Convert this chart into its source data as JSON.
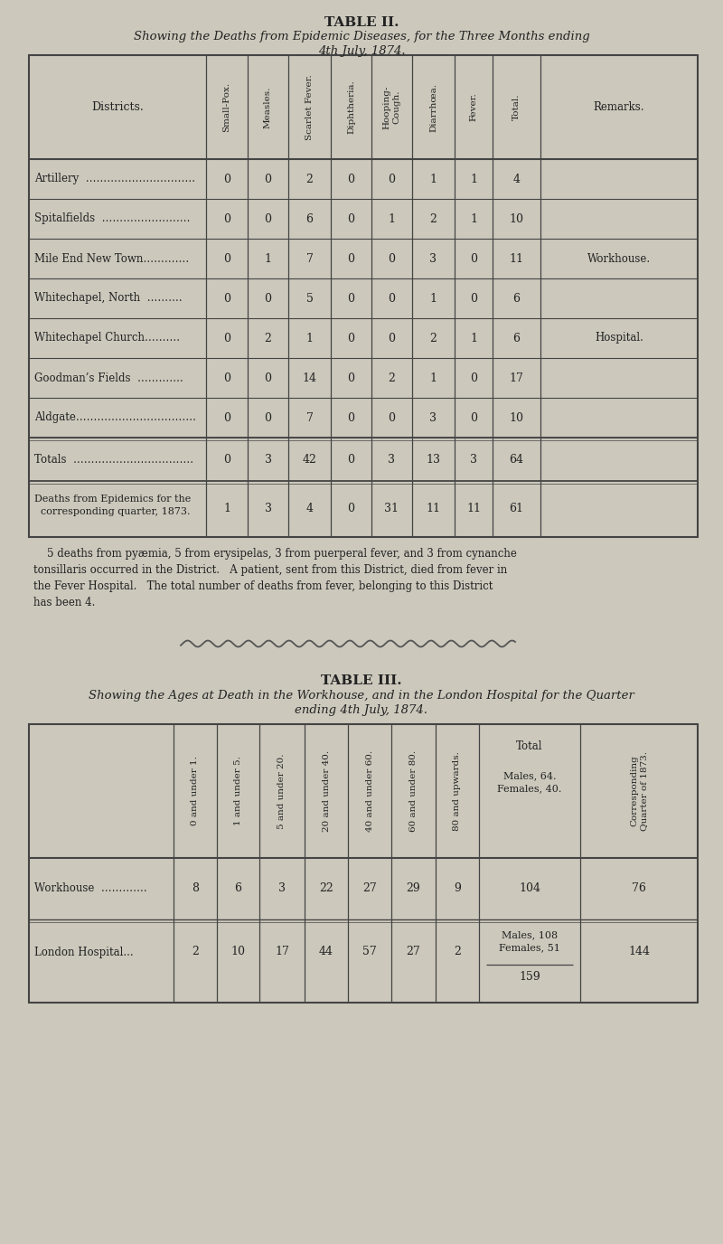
{
  "bg_color": "#ccc8bc",
  "table2_title": "TABLE II.",
  "table2_subtitle1": "Showing the Deaths from Epidemic Diseases, for the Three Months ending",
  "table2_subtitle2": "4th July, 1874.",
  "t2_col_headers": [
    "Small-Pox.",
    "Measles.",
    "Scarlet Fever.",
    "Diphtheria.",
    "Hooping-\nCough.",
    "Diarrhœa.",
    "Fever.",
    "Total.",
    "Remarks."
  ],
  "t2_districts": [
    "Artillery  ………………………….",
    "Spitalfields  …………………….",
    "Mile End New Town………….",
    "Whitechapel, North  ……….",
    "Whitechapel Church……….",
    "Goodman’s Fields  ………….",
    "Aldgate……………………………."
  ],
  "t2_data": [
    [
      0,
      0,
      2,
      0,
      0,
      1,
      1,
      4,
      ""
    ],
    [
      0,
      0,
      6,
      0,
      1,
      2,
      1,
      10,
      ""
    ],
    [
      0,
      1,
      7,
      0,
      0,
      3,
      0,
      11,
      "Workhouse."
    ],
    [
      0,
      0,
      5,
      0,
      0,
      1,
      0,
      6,
      ""
    ],
    [
      0,
      2,
      1,
      0,
      0,
      2,
      1,
      6,
      "Hospital."
    ],
    [
      0,
      0,
      14,
      0,
      2,
      1,
      0,
      17,
      ""
    ],
    [
      0,
      0,
      7,
      0,
      0,
      3,
      0,
      10,
      ""
    ],
    [
      0,
      3,
      42,
      0,
      3,
      13,
      3,
      64,
      ""
    ],
    [
      1,
      3,
      4,
      0,
      31,
      11,
      11,
      61,
      ""
    ]
  ],
  "t2_note": "    5 deaths from pyæmia, 5 from erysipelas, 3 from puerperal fever, and 3 from cynanche\ntonsillaris occurred in the District.   A patient, sent from this District, died from fever in\nthe Fever Hospital.   The total number of deaths from fever, belonging to this District\nhas been 4.",
  "table3_title": "TABLE III.",
  "table3_subtitle1": "Showing the Ages at Death in the Workhouse, and in the London Hospital for the Quarter",
  "table3_subtitle2": "ending 4th July, 1874.",
  "t3_col_headers": [
    "0 and under 1.",
    "1 and under 5.",
    "5 and under 20.",
    "20 and under 40.",
    "40 and under 60.",
    "60 and under 80.",
    "80 and upwards."
  ],
  "t3_data_wh": [
    8,
    6,
    3,
    22,
    27,
    29,
    9
  ],
  "t3_data_lh": [
    2,
    10,
    17,
    44,
    57,
    27,
    2
  ],
  "font_color": "#222222",
  "line_color": "#444444"
}
